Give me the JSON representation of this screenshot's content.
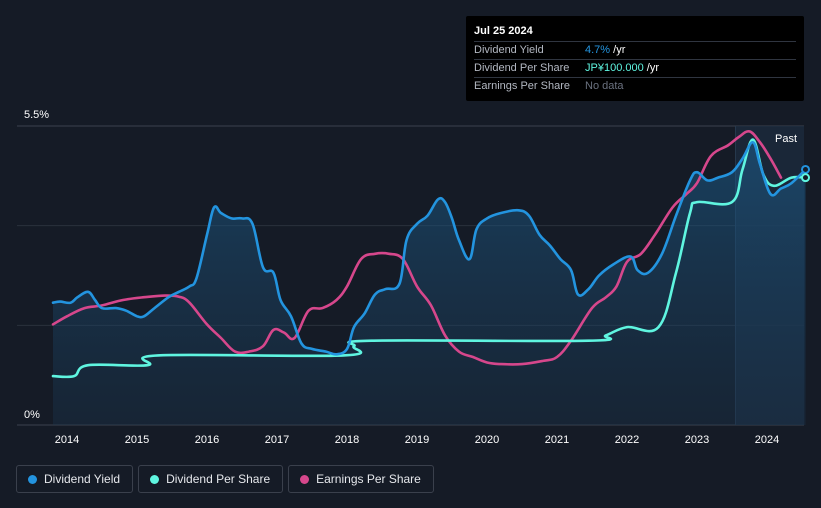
{
  "tooltip": {
    "date": "Jul 25 2024",
    "rows": [
      {
        "label": "Dividend Yield",
        "value": "4.7%",
        "unit": " /yr",
        "color": "#2394df"
      },
      {
        "label": "Dividend Per Share",
        "value": "JP¥100.000",
        "unit": " /yr",
        "color": "#5ff5e0"
      },
      {
        "label": "Earnings Per Share",
        "value": "No data",
        "unit": "",
        "color": "#6b7280"
      }
    ]
  },
  "legend": [
    {
      "label": "Dividend Yield",
      "color": "#2394df"
    },
    {
      "label": "Dividend Per Share",
      "color": "#5ff5e0"
    },
    {
      "label": "Earnings Per Share",
      "color": "#d6478c"
    }
  ],
  "chart_data": {
    "type": "line",
    "title": "",
    "xlabel": "",
    "ylabel": "",
    "y_tick_labels": [
      "5.5%",
      "0%"
    ],
    "ylim": [
      0,
      5.5
    ],
    "xlim": [
      2013.8,
      2024.55
    ],
    "x_ticks": [
      2014,
      2015,
      2016,
      2017,
      2018,
      2019,
      2020,
      2021,
      2022,
      2023,
      2024
    ],
    "past_label": "Past",
    "past_start": 2023.55,
    "grid": true,
    "legend_position": "bottom-left",
    "series": [
      {
        "name": "Dividend Yield",
        "color": "#2394df",
        "points": [
          [
            2013.8,
            2.25
          ],
          [
            2013.9,
            2.27
          ],
          [
            2014.05,
            2.25
          ],
          [
            2014.15,
            2.35
          ],
          [
            2014.3,
            2.45
          ],
          [
            2014.4,
            2.3
          ],
          [
            2014.5,
            2.15
          ],
          [
            2014.7,
            2.15
          ],
          [
            2014.85,
            2.1
          ],
          [
            2015.0,
            2.0
          ],
          [
            2015.1,
            2.0
          ],
          [
            2015.25,
            2.15
          ],
          [
            2015.45,
            2.35
          ],
          [
            2015.6,
            2.45
          ],
          [
            2015.75,
            2.55
          ],
          [
            2015.85,
            2.7
          ],
          [
            2016.0,
            3.5
          ],
          [
            2016.1,
            4.0
          ],
          [
            2016.2,
            3.9
          ],
          [
            2016.35,
            3.8
          ],
          [
            2016.5,
            3.8
          ],
          [
            2016.65,
            3.7
          ],
          [
            2016.8,
            2.9
          ],
          [
            2016.95,
            2.8
          ],
          [
            2017.05,
            2.3
          ],
          [
            2017.2,
            2.0
          ],
          [
            2017.35,
            1.5
          ],
          [
            2017.5,
            1.4
          ],
          [
            2017.7,
            1.35
          ],
          [
            2017.85,
            1.3
          ],
          [
            2018.0,
            1.4
          ],
          [
            2018.1,
            1.8
          ],
          [
            2018.25,
            2.05
          ],
          [
            2018.4,
            2.4
          ],
          [
            2018.55,
            2.5
          ],
          [
            2018.75,
            2.6
          ],
          [
            2018.85,
            3.4
          ],
          [
            2019.0,
            3.7
          ],
          [
            2019.15,
            3.85
          ],
          [
            2019.3,
            4.15
          ],
          [
            2019.4,
            4.1
          ],
          [
            2019.5,
            3.8
          ],
          [
            2019.6,
            3.4
          ],
          [
            2019.75,
            3.05
          ],
          [
            2019.85,
            3.6
          ],
          [
            2020.0,
            3.8
          ],
          [
            2020.2,
            3.9
          ],
          [
            2020.45,
            3.95
          ],
          [
            2020.6,
            3.85
          ],
          [
            2020.75,
            3.5
          ],
          [
            2020.9,
            3.3
          ],
          [
            2021.05,
            3.05
          ],
          [
            2021.2,
            2.85
          ],
          [
            2021.3,
            2.4
          ],
          [
            2021.45,
            2.5
          ],
          [
            2021.6,
            2.75
          ],
          [
            2021.8,
            2.95
          ],
          [
            2022.05,
            3.1
          ],
          [
            2022.15,
            2.85
          ],
          [
            2022.3,
            2.8
          ],
          [
            2022.5,
            3.15
          ],
          [
            2022.7,
            3.85
          ],
          [
            2022.9,
            4.5
          ],
          [
            2023.0,
            4.65
          ],
          [
            2023.15,
            4.5
          ],
          [
            2023.3,
            4.55
          ],
          [
            2023.5,
            4.65
          ],
          [
            2023.65,
            4.9
          ],
          [
            2023.8,
            5.2
          ],
          [
            2023.9,
            4.8
          ],
          [
            2024.05,
            4.25
          ],
          [
            2024.2,
            4.35
          ],
          [
            2024.35,
            4.45
          ],
          [
            2024.55,
            4.7
          ]
        ]
      },
      {
        "name": "Dividend Per Share",
        "color": "#5ff5e0",
        "points": [
          [
            2013.8,
            0.9
          ],
          [
            2014.1,
            0.9
          ],
          [
            2014.3,
            1.1
          ],
          [
            2015.15,
            1.1
          ],
          [
            2015.3,
            1.28
          ],
          [
            2017.95,
            1.28
          ],
          [
            2018.1,
            1.45
          ],
          [
            2018.35,
            1.55
          ],
          [
            2021.45,
            1.55
          ],
          [
            2021.7,
            1.65
          ],
          [
            2022.0,
            1.8
          ],
          [
            2022.45,
            1.8
          ],
          [
            2022.7,
            2.8
          ],
          [
            2022.9,
            3.9
          ],
          [
            2023.0,
            4.1
          ],
          [
            2023.5,
            4.1
          ],
          [
            2023.65,
            4.7
          ],
          [
            2023.8,
            5.25
          ],
          [
            2023.95,
            4.6
          ],
          [
            2024.1,
            4.4
          ],
          [
            2024.35,
            4.55
          ],
          [
            2024.55,
            4.55
          ]
        ]
      },
      {
        "name": "Earnings Per Share",
        "color": "#d6478c",
        "points": [
          [
            2013.8,
            1.85
          ],
          [
            2014.0,
            2.0
          ],
          [
            2014.25,
            2.15
          ],
          [
            2014.5,
            2.2
          ],
          [
            2014.8,
            2.3
          ],
          [
            2015.1,
            2.35
          ],
          [
            2015.4,
            2.38
          ],
          [
            2015.6,
            2.36
          ],
          [
            2015.75,
            2.25
          ],
          [
            2016.0,
            1.85
          ],
          [
            2016.2,
            1.6
          ],
          [
            2016.4,
            1.35
          ],
          [
            2016.6,
            1.35
          ],
          [
            2016.8,
            1.45
          ],
          [
            2016.95,
            1.75
          ],
          [
            2017.1,
            1.7
          ],
          [
            2017.25,
            1.6
          ],
          [
            2017.45,
            2.1
          ],
          [
            2017.65,
            2.15
          ],
          [
            2017.85,
            2.3
          ],
          [
            2018.0,
            2.55
          ],
          [
            2018.2,
            3.05
          ],
          [
            2018.4,
            3.15
          ],
          [
            2018.6,
            3.15
          ],
          [
            2018.8,
            3.05
          ],
          [
            2019.0,
            2.55
          ],
          [
            2019.2,
            2.2
          ],
          [
            2019.4,
            1.65
          ],
          [
            2019.6,
            1.35
          ],
          [
            2019.8,
            1.25
          ],
          [
            2020.0,
            1.15
          ],
          [
            2020.2,
            1.12
          ],
          [
            2020.5,
            1.12
          ],
          [
            2020.8,
            1.18
          ],
          [
            2021.0,
            1.25
          ],
          [
            2021.2,
            1.55
          ],
          [
            2021.5,
            2.15
          ],
          [
            2021.7,
            2.35
          ],
          [
            2021.85,
            2.55
          ],
          [
            2022.0,
            3.0
          ],
          [
            2022.2,
            3.15
          ],
          [
            2022.4,
            3.5
          ],
          [
            2022.65,
            4.0
          ],
          [
            2022.85,
            4.25
          ],
          [
            2023.0,
            4.45
          ],
          [
            2023.2,
            4.95
          ],
          [
            2023.45,
            5.15
          ],
          [
            2023.6,
            5.3
          ],
          [
            2023.75,
            5.4
          ],
          [
            2023.9,
            5.2
          ],
          [
            2024.05,
            4.9
          ],
          [
            2024.2,
            4.55
          ]
        ]
      }
    ]
  }
}
